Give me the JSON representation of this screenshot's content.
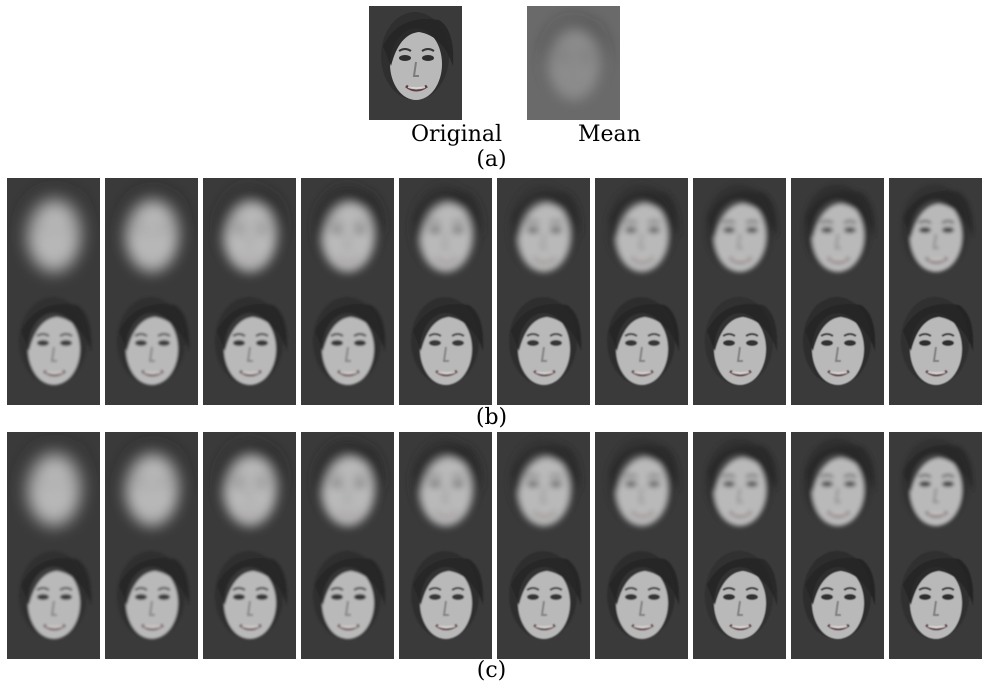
{
  "panel_a": {
    "original_label": "Original",
    "mean_label": "Mean",
    "caption": "(a)"
  },
  "panel_b": {
    "caption": "(b)",
    "rows": [
      {
        "blur": [
          8,
          7,
          5.5,
          4.5,
          3.8,
          3.2,
          2.8,
          2.4,
          2.0,
          1.8
        ]
      },
      {
        "blur": [
          1.4,
          1.2,
          1.1,
          1.0,
          0.9,
          0.8,
          0.7,
          0.6,
          0.5,
          0.4
        ]
      }
    ]
  },
  "panel_c": {
    "caption": "(c)",
    "rows": [
      {
        "blur": [
          8,
          7,
          5.5,
          4.5,
          3.8,
          3.2,
          2.8,
          2.4,
          2.0,
          1.8
        ]
      },
      {
        "blur": [
          1.4,
          1.2,
          1.1,
          1.0,
          0.9,
          0.8,
          0.7,
          0.6,
          0.5,
          0.4
        ]
      }
    ]
  }
}
